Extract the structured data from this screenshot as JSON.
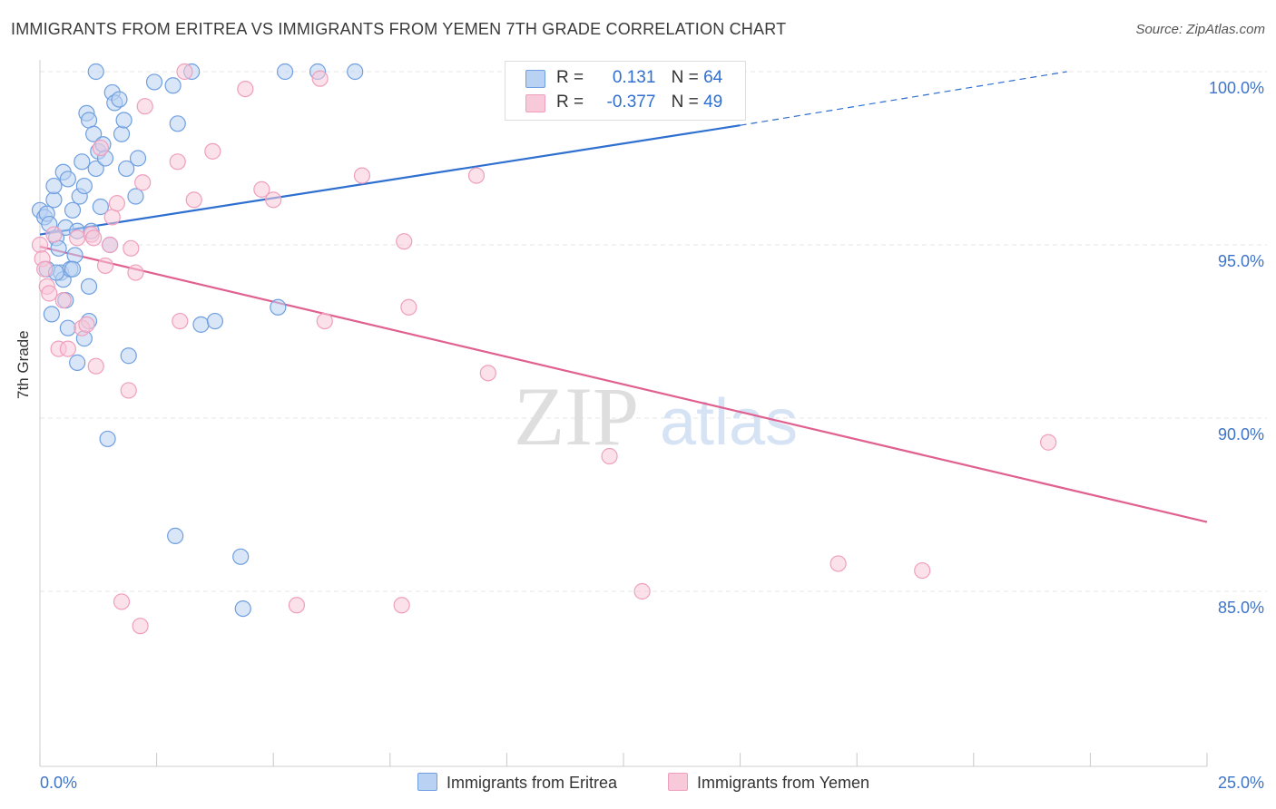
{
  "header": {
    "title": "IMMIGRANTS FROM ERITREA VS IMMIGRANTS FROM YEMEN 7TH GRADE CORRELATION CHART",
    "source": "Source: ZipAtlas.com"
  },
  "watermark": {
    "zip": "ZIP",
    "atlas": "atlas"
  },
  "legend": {
    "rows": [
      {
        "r_label": "R =",
        "r_value": "0.131",
        "n_label": "N =",
        "n_value": "64"
      },
      {
        "r_label": "R =",
        "r_value": "-0.377",
        "n_label": "N =",
        "n_value": "49"
      }
    ]
  },
  "bottom_legend": {
    "items": [
      {
        "label": "Immigrants from Eritrea"
      },
      {
        "label": "Immigrants from Yemen"
      }
    ]
  },
  "colors": {
    "eritrea_stroke": "#6f9fe0",
    "eritrea_fill": "#b9d1f3",
    "eritrea_line": "#2e6fd0",
    "yemen_stroke": "#ef9fbd",
    "yemen_fill": "#f8c9d9",
    "yemen_line": "#e06090",
    "tick_label": "#3d74c9"
  },
  "chart_data": {
    "type": "scatter",
    "title": "IMMIGRANTS FROM ERITREA VS IMMIGRANTS FROM YEMEN 7TH GRADE CORRELATION CHART",
    "xlabel": "",
    "ylabel": "7th Grade",
    "xlim": [
      0,
      25
    ],
    "ylim": [
      80.5,
      100.6
    ],
    "x_tick_labels": [
      "0.0%",
      "25.0%"
    ],
    "y_ticks": [
      85,
      90,
      95,
      100
    ],
    "y_tick_labels": [
      "85.0%",
      "90.0%",
      "95.0%",
      "100.0%"
    ],
    "grid": true,
    "legend_position": "top-center",
    "series": [
      {
        "name": "Immigrants from Eritrea",
        "points": [
          [
            0.0,
            96.0
          ],
          [
            0.1,
            95.8
          ],
          [
            0.15,
            95.9
          ],
          [
            0.2,
            95.6
          ],
          [
            0.3,
            96.3
          ],
          [
            0.3,
            96.7
          ],
          [
            0.35,
            95.2
          ],
          [
            0.4,
            94.9
          ],
          [
            0.45,
            94.2
          ],
          [
            0.5,
            94.0
          ],
          [
            0.5,
            97.1
          ],
          [
            0.55,
            95.5
          ],
          [
            0.6,
            96.9
          ],
          [
            0.65,
            94.3
          ],
          [
            0.7,
            96.0
          ],
          [
            0.75,
            94.7
          ],
          [
            0.8,
            95.4
          ],
          [
            0.85,
            96.4
          ],
          [
            0.9,
            97.4
          ],
          [
            0.95,
            96.7
          ],
          [
            1.0,
            98.8
          ],
          [
            1.05,
            98.6
          ],
          [
            1.1,
            95.4
          ],
          [
            1.15,
            98.2
          ],
          [
            1.2,
            97.2
          ],
          [
            1.25,
            97.7
          ],
          [
            1.3,
            96.1
          ],
          [
            1.35,
            97.9
          ],
          [
            1.4,
            97.5
          ],
          [
            1.5,
            95.0
          ],
          [
            1.55,
            99.4
          ],
          [
            1.6,
            99.1
          ],
          [
            1.7,
            99.2
          ],
          [
            1.75,
            98.2
          ],
          [
            1.8,
            98.6
          ],
          [
            1.85,
            97.2
          ],
          [
            1.9,
            91.8
          ],
          [
            2.05,
            96.4
          ],
          [
            2.1,
            97.5
          ],
          [
            2.45,
            99.7
          ],
          [
            2.85,
            99.6
          ],
          [
            2.95,
            98.5
          ],
          [
            3.25,
            100.0
          ],
          [
            3.45,
            92.7
          ],
          [
            3.75,
            92.8
          ],
          [
            1.2,
            100.0
          ],
          [
            5.25,
            100.0
          ],
          [
            5.95,
            100.0
          ],
          [
            6.75,
            100.0
          ],
          [
            0.25,
            93.0
          ],
          [
            0.6,
            92.6
          ],
          [
            0.8,
            91.6
          ],
          [
            0.95,
            92.3
          ],
          [
            1.05,
            92.8
          ],
          [
            1.05,
            93.8
          ],
          [
            1.45,
            89.4
          ],
          [
            2.9,
            86.6
          ],
          [
            4.3,
            86.0
          ],
          [
            4.35,
            84.5
          ],
          [
            5.1,
            93.2
          ],
          [
            0.15,
            94.3
          ],
          [
            0.35,
            94.2
          ],
          [
            0.55,
            93.4
          ],
          [
            0.7,
            94.3
          ]
        ]
      },
      {
        "name": "Immigrants from Yemen",
        "points": [
          [
            0.0,
            95.0
          ],
          [
            0.05,
            94.6
          ],
          [
            0.1,
            94.3
          ],
          [
            0.15,
            93.8
          ],
          [
            0.2,
            93.6
          ],
          [
            0.3,
            95.3
          ],
          [
            0.4,
            92.0
          ],
          [
            0.5,
            93.4
          ],
          [
            0.6,
            92.0
          ],
          [
            0.8,
            95.2
          ],
          [
            0.9,
            92.6
          ],
          [
            1.0,
            92.7
          ],
          [
            1.1,
            95.3
          ],
          [
            1.15,
            95.2
          ],
          [
            1.2,
            91.5
          ],
          [
            1.3,
            97.8
          ],
          [
            1.4,
            94.4
          ],
          [
            1.5,
            95.0
          ],
          [
            1.55,
            95.8
          ],
          [
            1.65,
            96.2
          ],
          [
            1.9,
            90.8
          ],
          [
            1.95,
            94.9
          ],
          [
            2.05,
            94.2
          ],
          [
            2.2,
            96.8
          ],
          [
            2.25,
            99.0
          ],
          [
            2.95,
            97.4
          ],
          [
            3.0,
            92.8
          ],
          [
            3.1,
            100.0
          ],
          [
            3.3,
            96.3
          ],
          [
            3.7,
            97.7
          ],
          [
            4.4,
            99.5
          ],
          [
            4.75,
            96.6
          ],
          [
            5.0,
            96.3
          ],
          [
            6.0,
            99.8
          ],
          [
            6.1,
            92.8
          ],
          [
            6.9,
            97.0
          ],
          [
            7.8,
            95.1
          ],
          [
            7.9,
            93.2
          ],
          [
            9.35,
            97.0
          ],
          [
            9.6,
            91.3
          ],
          [
            12.2,
            88.9
          ],
          [
            21.6,
            89.3
          ],
          [
            1.75,
            84.7
          ],
          [
            2.15,
            84.0
          ],
          [
            5.5,
            84.6
          ],
          [
            7.75,
            84.6
          ],
          [
            12.9,
            85.0
          ],
          [
            17.1,
            85.8
          ],
          [
            18.9,
            85.6
          ]
        ]
      }
    ],
    "trendlines": [
      {
        "series": "Immigrants from Eritrea",
        "x": [
          0,
          15
        ],
        "y": [
          95.3,
          98.45
        ],
        "extension_x": [
          15,
          22
        ],
        "extension_y": [
          98.45,
          100.0
        ]
      },
      {
        "series": "Immigrants from Yemen",
        "x": [
          0,
          25
        ],
        "y": [
          94.95,
          87.0
        ]
      }
    ]
  }
}
